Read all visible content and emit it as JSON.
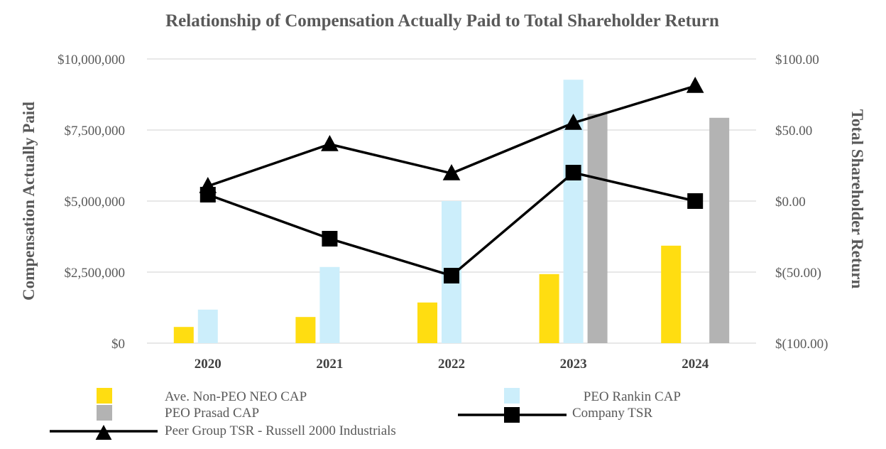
{
  "chart_data": {
    "type": "bar",
    "title": "Relationship of Compensation Actually Paid to Total Shareholder Return",
    "ylabel": "Compensation Actually Paid",
    "y2label": "Total Shareholder Return",
    "categories": [
      "2020",
      "2021",
      "2022",
      "2023",
      "2024"
    ],
    "ylim": [
      0,
      10000000
    ],
    "y2lim": [
      -100,
      100
    ],
    "yticks": [
      "$0",
      "$2,500,000",
      "$5,000,000",
      "$7,500,000",
      "$10,000,000"
    ],
    "y2ticks": [
      "$(100.00)",
      "$(50.00)",
      "$0.00",
      "$50.00",
      "$100.00"
    ],
    "grid": true,
    "legend_position": "bottom",
    "bar_series": [
      {
        "name": "Ave. Non-PEO NEO CAP",
        "color": "#FFDD11",
        "values": [
          570000,
          920000,
          1430000,
          2430000,
          3430000
        ]
      },
      {
        "name": "PEO Rankin CAP",
        "color": "#CCEEFB",
        "values": [
          1180000,
          2680000,
          5000000,
          9270000,
          null
        ]
      },
      {
        "name": "PEO Prasad CAP",
        "color": "#B3B3B3",
        "values": [
          null,
          null,
          null,
          8070000,
          7930000
        ]
      }
    ],
    "line_series": [
      {
        "name": "Company TSR",
        "marker": "square",
        "axis": "right",
        "values": [
          4.5,
          -26.5,
          -52.5,
          20,
          0
        ]
      },
      {
        "name": "Peer Group TSR  - Russell 2000 Industrials",
        "marker": "triangle",
        "axis": "right",
        "values": [
          10.5,
          40,
          19.5,
          55,
          81
        ]
      }
    ]
  }
}
